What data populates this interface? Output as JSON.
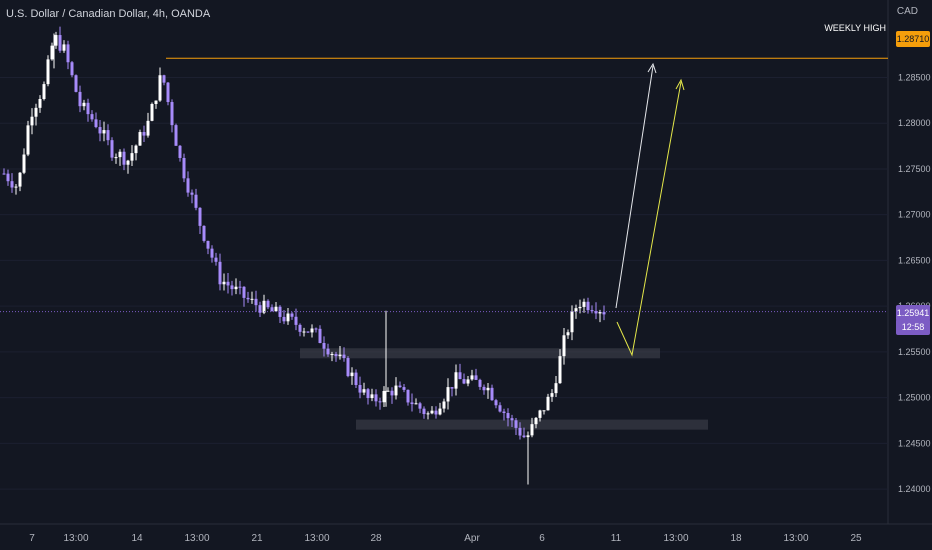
{
  "header": {
    "title": "U.S. Dollar / Canadian Dollar, 4h, OANDA",
    "currency": "CAD"
  },
  "colors": {
    "background": "#131722",
    "bull": "#ffffff",
    "bear": "#a78bfa",
    "weekly_high": "#f59e0b",
    "current_price": "#7c5cc4",
    "zone": "#434651",
    "arrow_white": "#e5e7eb",
    "arrow_yellow": "#e5e84a"
  },
  "annotations": {
    "weekly_high_label": "WEEKLY HIGH",
    "weekly_high_price": "1.28710",
    "current_price": "1.25941",
    "countdown": "12:58"
  },
  "chart_data": {
    "type": "candlestick",
    "title": "U.S. Dollar / Canadian Dollar, 4h, OANDA",
    "ylim": [
      1.2375,
      1.2915
    ],
    "y_ticks": [
      "1.28500",
      "1.28000",
      "1.27500",
      "1.27000",
      "1.26500",
      "1.26000",
      "1.25500",
      "1.25000",
      "1.24500",
      "1.24000"
    ],
    "x_ticks": [
      "7",
      "13:00",
      "14",
      "13:00",
      "21",
      "13:00",
      "28",
      "Apr",
      "6",
      "11",
      "13:00",
      "18",
      "13:00",
      "25"
    ],
    "weekly_high": 1.2871,
    "current_price": 1.25941,
    "zones": [
      {
        "from": 1.2554,
        "to": 1.2543
      },
      {
        "from": 1.2476,
        "to": 1.2465
      }
    ],
    "key_points": [
      {
        "label": "high",
        "value": 1.2898
      },
      {
        "label": "low",
        "value": 1.2405
      }
    ]
  }
}
